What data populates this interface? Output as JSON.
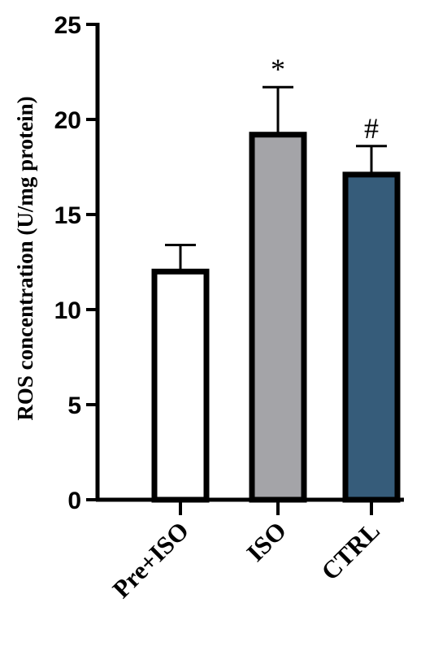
{
  "chart_data": {
    "type": "bar",
    "categories": [
      "Pre+ISO",
      "ISO",
      "CTRL"
    ],
    "values": [
      12.0,
      19.2,
      17.1
    ],
    "errors": [
      1.4,
      2.5,
      1.5
    ],
    "annotations": [
      "",
      "*",
      "#"
    ],
    "bar_colors": [
      "#ffffff",
      "#a4a4a8",
      "#365c7a"
    ],
    "edge_color": "#000000",
    "title": "",
    "xlabel": "",
    "ylabel": "ROS concentration (U/mg protein)",
    "ylim": [
      0,
      25
    ],
    "yticks": [
      0,
      5,
      10,
      15,
      20,
      25
    ],
    "grid": false,
    "legend": "none"
  }
}
